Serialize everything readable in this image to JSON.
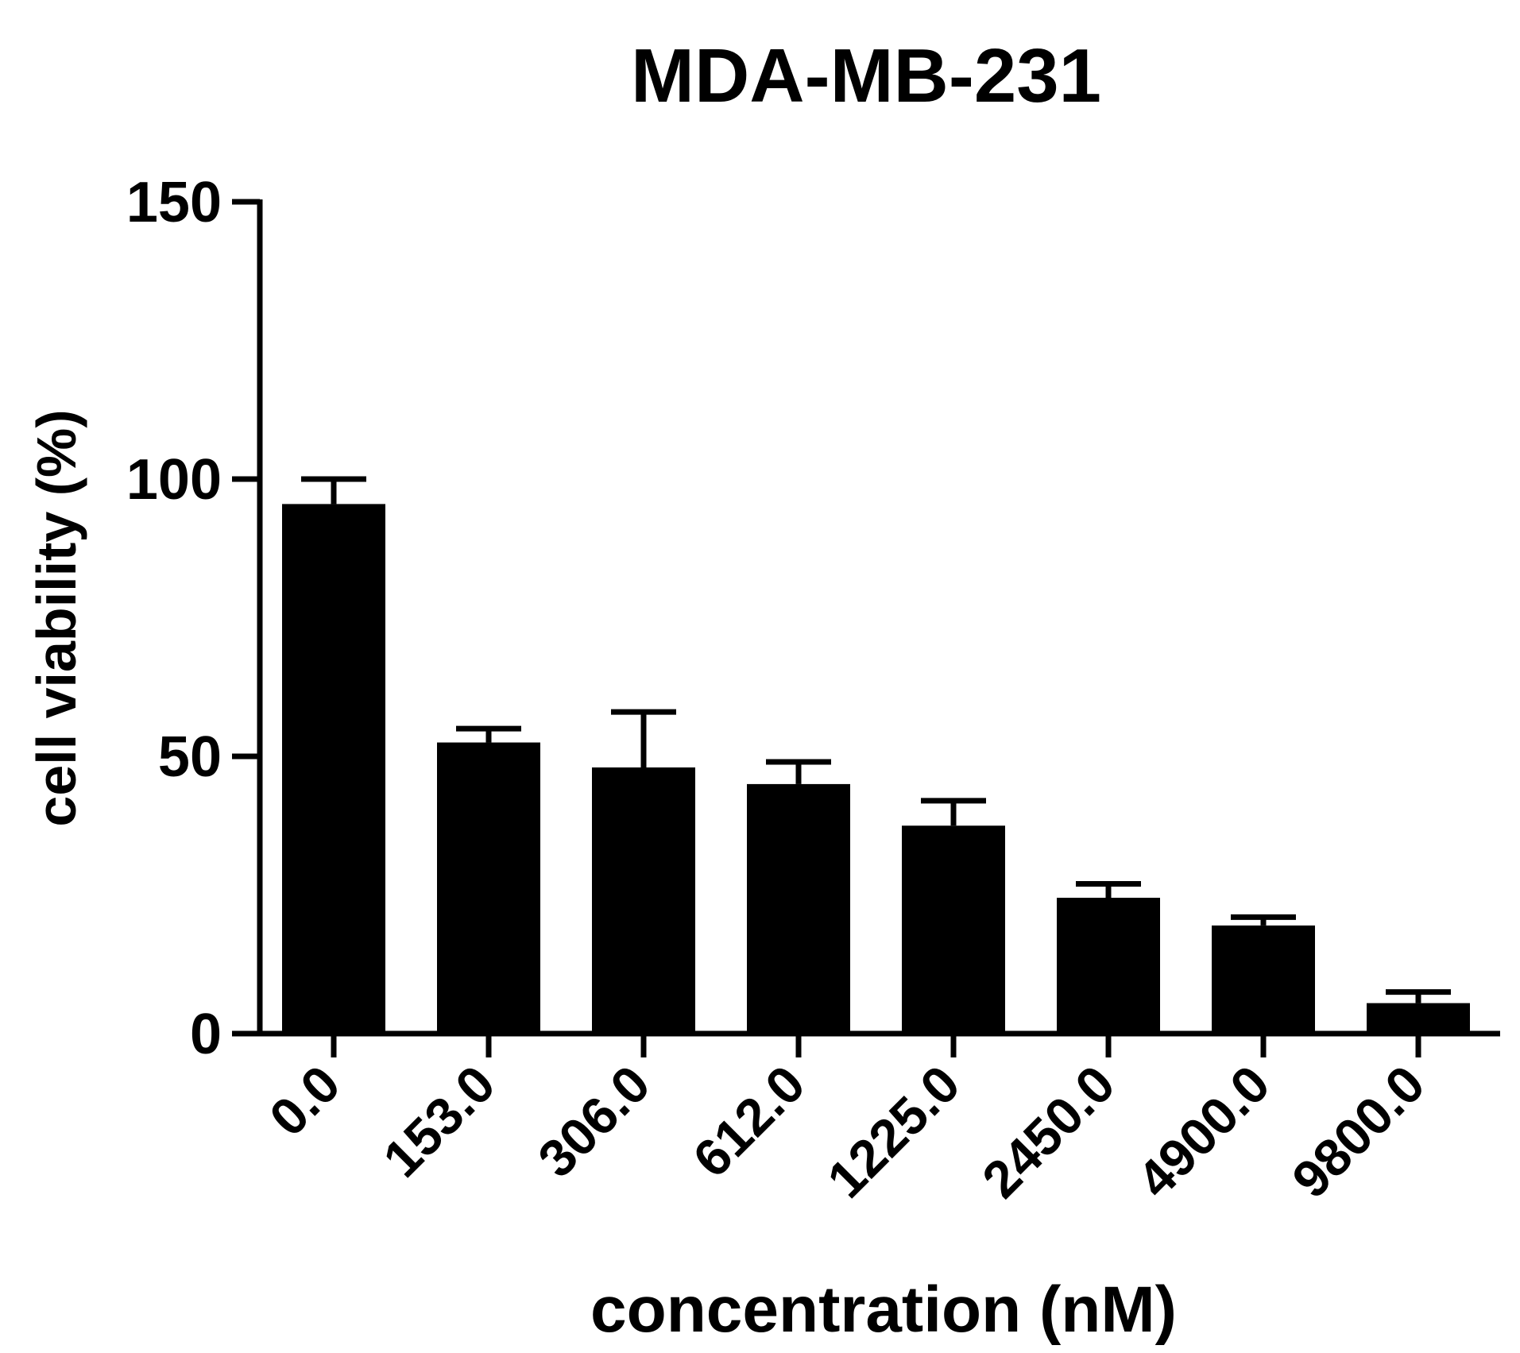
{
  "chart_data": {
    "type": "bar",
    "title": "MDA-MB-231",
    "xlabel": "concentration (nM)",
    "ylabel": "cell viability (%)",
    "categories": [
      "0.0",
      "153.0",
      "306.0",
      "612.0",
      "1225.0",
      "2450.0",
      "4900.0",
      "9800.0"
    ],
    "values": [
      95.5,
      52.5,
      48.0,
      45.0,
      37.5,
      24.5,
      19.5,
      5.5
    ],
    "errors": [
      4.5,
      2.5,
      10.0,
      4.0,
      4.5,
      2.5,
      1.5,
      2.0
    ],
    "ylim": [
      0,
      150
    ],
    "yticks": [
      0,
      50,
      100,
      150
    ],
    "grid": false,
    "legend": "none",
    "bar_color": "#000000"
  }
}
